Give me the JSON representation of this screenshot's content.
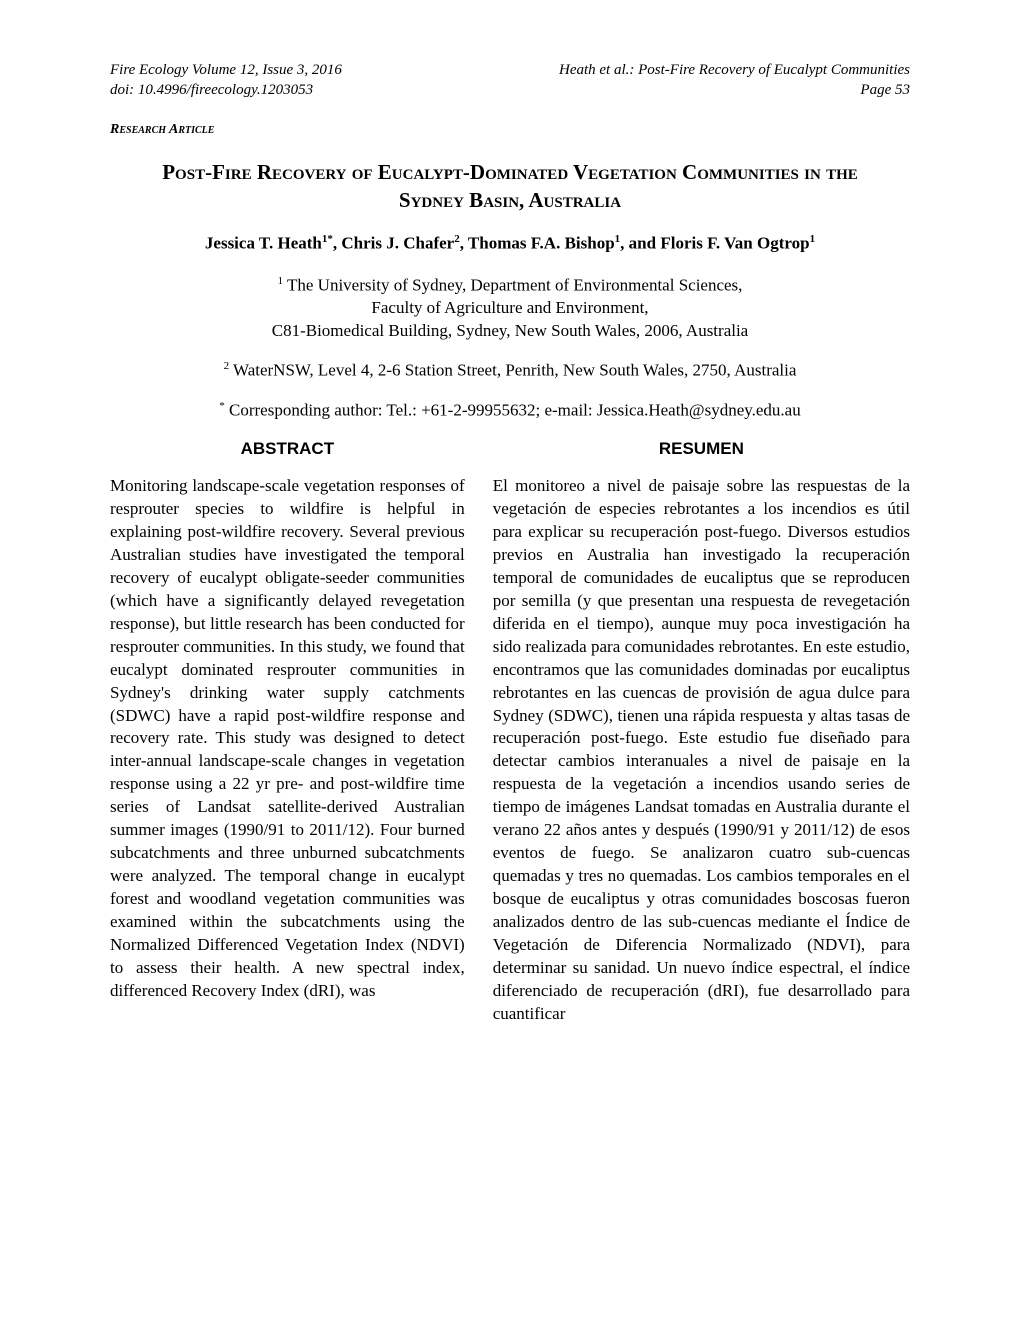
{
  "header": {
    "journal": "Fire Ecology Volume 12, Issue 3, 2016",
    "doi": "doi: 10.4996/fireecology.1203053",
    "running_head": "Heath et al.: Post-Fire Recovery of Eucalypt Communities",
    "page": "Page 53"
  },
  "article_type": "Research Article",
  "title": "Post-Fire Recovery of Eucalypt-Dominated Vegetation Communities in the Sydney Basin, Australia",
  "authors_html": "Jessica T. Heath<sup>1*</sup>, Chris J. Chafer<sup>2</sup>, Thomas F.A. Bishop<sup>1</sup>, and Floris F. Van Ogtrop<sup>1</sup>",
  "affiliations": {
    "aff1_html": "<sup>1</sup> The University of Sydney, Department of Environmental Sciences,<br>Faculty of Agriculture and Environment,<br>C81-Biomedical Building, Sydney, New South Wales, 2006, Australia",
    "aff2_html": "<sup>2</sup> WaterNSW, Level 4, 2-6 Station Street, Penrith, New South Wales, 2750, Australia",
    "corresponding_html": "<sup>*</sup> Corresponding author: Tel.: +61-2-99955632; e-mail: Jessica.Heath@sydney.edu.au"
  },
  "abstract": {
    "heading": "ABSTRACT",
    "text": "Monitoring landscape-scale vegetation responses of resprouter species to wildfire is helpful in explaining post-wildfire recovery.  Several previous Australian studies have investigated the temporal recovery of eucalypt obligate-seeder communities (which have a significantly delayed revegetation response), but little research has been conducted for resprouter communities.  In this study, we found that eucalypt dominated resprouter communities in Sydney's drinking water supply catchments (SDWC) have a rapid post-wildfire response and recovery rate.  This study was designed to detect inter-annual landscape-scale changes in vegetation response using a 22 yr pre- and post-wildfire time series of Landsat satellite-derived Australian summer images (1990/91 to 2011/12).  Four burned subcatchments and three unburned subcatchments were analyzed.  The temporal change in eucalypt forest and woodland vegetation communities was examined within the subcatchments using the Normalized Differenced Vegetation Index (NDVI) to assess their health.  A new spectral index, differenced Recovery Index (dRI), was"
  },
  "resumen": {
    "heading": "RESUMEN",
    "text": "El monitoreo a nivel de paisaje sobre las respuestas de la vegetación de especies rebrotantes a los incendios es útil para explicar su recuperación post-fuego.  Diversos estudios previos en Australia han investigado la recuperación temporal de comunidades de eucaliptus que se reproducen por semilla (y que presentan una respuesta de revegetación diferida en el tiempo), aunque muy poca investigación ha sido realizada para comunidades rebrotantes.  En este estudio, encontramos que las comunidades dominadas por eucaliptus rebrotantes en las cuencas de provisión de agua dulce para Sydney (SDWC), tienen una rápida respuesta y altas tasas de recuperación post-fuego.  Este estudio fue diseñado para detectar cambios interanuales a nivel de paisaje en la respuesta de la vegetación a incendios usando series de tiempo de imágenes Landsat tomadas en Australia durante el verano 22 años antes y después (1990/91 y 2011/12) de esos eventos de fuego.  Se analizaron cuatro sub-cuencas quemadas y tres no quemadas.  Los cambios temporales en el bosque de eucaliptus y otras comunidades boscosas fueron analizados dentro de las sub-cuencas mediante el Índice de Vegetación de Diferencia Normalizado (NDVI), para determinar su sanidad.  Un nuevo índice espectral, el índice diferenciado de recuperación (dRI), fue desarrollado para cuantificar"
  }
}
